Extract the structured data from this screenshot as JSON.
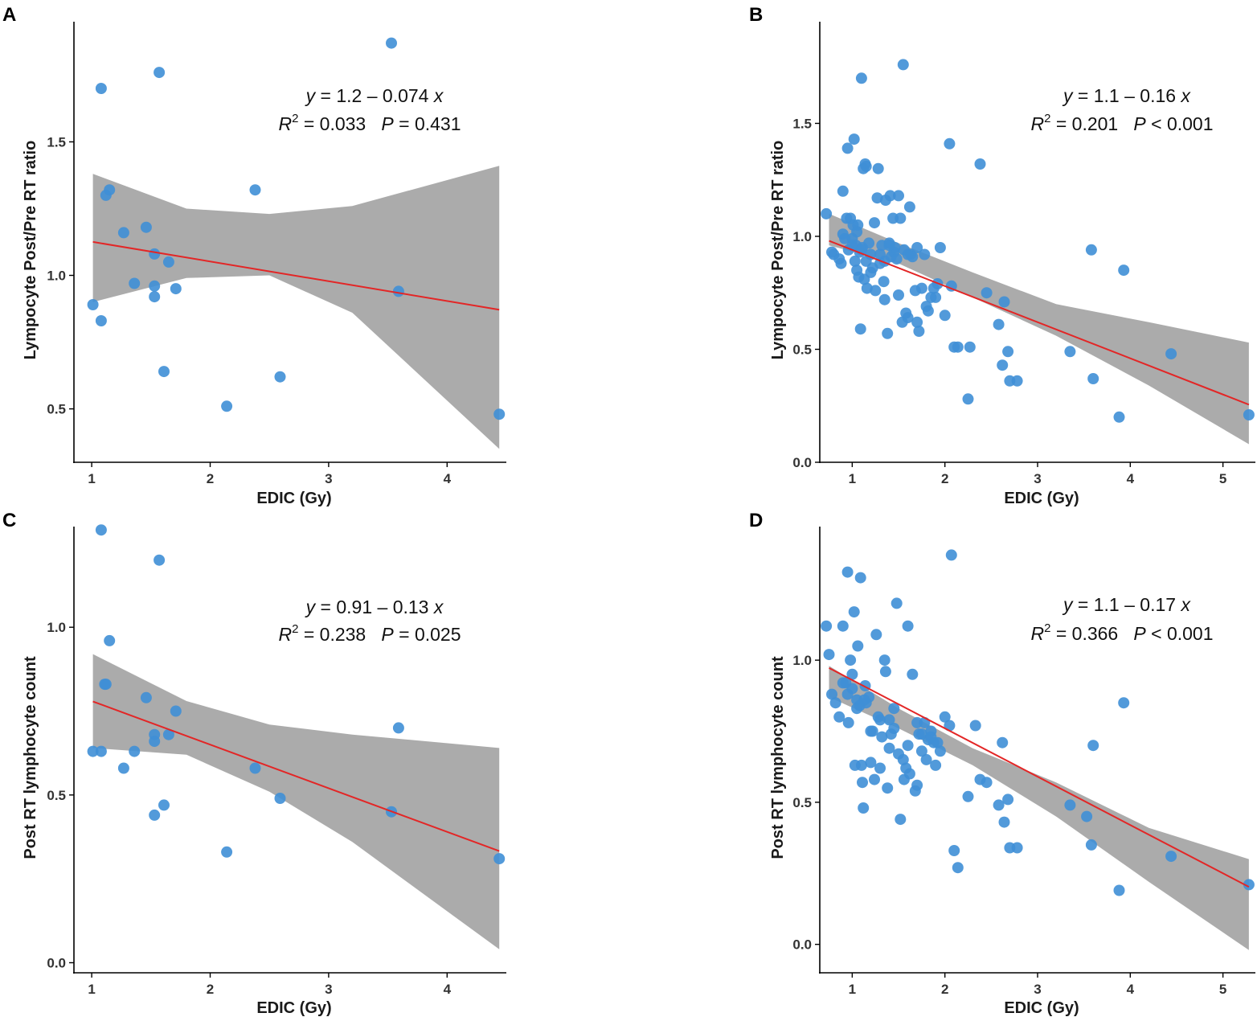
{
  "colors": {
    "point": "#3f8fd6",
    "regression_line": "#e32626",
    "confidence_band": "#a6a6a6",
    "axis": "#000000"
  },
  "chart_data": [
    {
      "type": "scatter",
      "panel_label": "A",
      "xlabel": "EDIC (Gy)",
      "ylabel": "Lympocyte Post/Pre RT ratio",
      "xlim": [
        0.85,
        4.5
      ],
      "ylim": [
        0.3,
        1.95
      ],
      "xticks": [
        1,
        2,
        3,
        4
      ],
      "yticks": [
        0.5,
        1.0,
        1.5
      ],
      "ytick_labels": [
        "0.5",
        "1.0",
        "1.5"
      ],
      "equation": {
        "y_label": "y",
        "intercept_text": " = 1.2 ",
        "minus": "–",
        "slope_text": " 0.074 ",
        "x_label": "x"
      },
      "stats": {
        "r_label": "R",
        "r_exp": "2",
        "r_value_text": " = 0.033",
        "p_label": "P",
        "p_value_text": " = 0.431"
      },
      "regression": {
        "intercept": 1.2,
        "slope": -0.074,
        "x_range": [
          1.01,
          4.44
        ],
        "band": [
          [
            1.01,
            0.9,
            1.38
          ],
          [
            1.8,
            0.99,
            1.25
          ],
          [
            2.5,
            1.0,
            1.23
          ],
          [
            3.2,
            0.86,
            1.26
          ],
          [
            4.44,
            0.35,
            1.41
          ]
        ]
      },
      "x": [
        1.01,
        1.08,
        1.08,
        1.12,
        1.15,
        1.27,
        1.36,
        1.46,
        1.53,
        1.53,
        1.53,
        1.57,
        1.61,
        1.65,
        1.71,
        2.14,
        2.38,
        2.59,
        3.53,
        3.59,
        4.44
      ],
      "y": [
        0.89,
        1.7,
        0.83,
        1.3,
        1.32,
        1.16,
        0.97,
        1.18,
        1.08,
        0.96,
        0.92,
        1.76,
        0.64,
        1.05,
        0.95,
        0.51,
        1.32,
        0.62,
        1.87,
        0.94,
        0.48
      ]
    },
    {
      "type": "scatter",
      "panel_label": "B",
      "xlabel": "EDIC (Gy)",
      "ylabel": "Lympocyte Post/Pre RT ratio",
      "xlim": [
        0.65,
        5.35
      ],
      "ylim": [
        0.0,
        1.95
      ],
      "xticks": [
        1,
        2,
        3,
        4,
        5
      ],
      "yticks": [
        0.0,
        0.5,
        1.0,
        1.5
      ],
      "ytick_labels": [
        "0.0",
        "0.5",
        "1.0",
        "1.5"
      ],
      "equation": {
        "y_label": "y",
        "intercept_text": " = 1.1 ",
        "minus": "–",
        "slope_text": " 0.16 ",
        "x_label": "x"
      },
      "stats": {
        "r_label": "R",
        "r_exp": "2",
        "r_value_text": " = 0.201",
        "p_label": "P",
        "p_value_text": " < 0.001"
      },
      "regression": {
        "intercept": 1.1,
        "slope": -0.16,
        "x_range": [
          0.75,
          5.28
        ],
        "band": [
          [
            0.75,
            0.96,
            1.1
          ],
          [
            1.5,
            0.88,
            0.97
          ],
          [
            2.3,
            0.73,
            0.84
          ],
          [
            3.2,
            0.56,
            0.7
          ],
          [
            4.2,
            0.34,
            0.62
          ],
          [
            5.28,
            0.08,
            0.53
          ]
        ]
      },
      "x": [
        0.72,
        0.78,
        0.8,
        0.86,
        0.88,
        0.9,
        0.92,
        0.94,
        0.95,
        0.96,
        0.98,
        1.0,
        1.01,
        1.02,
        1.03,
        1.04,
        1.05,
        1.06,
        1.07,
        1.08,
        1.09,
        1.1,
        1.11,
        1.12,
        1.13,
        1.14,
        1.15,
        1.16,
        1.18,
        1.2,
        1.22,
        1.24,
        1.25,
        1.27,
        1.28,
        1.3,
        1.32,
        1.34,
        1.35,
        1.36,
        1.38,
        1.4,
        1.41,
        1.42,
        1.44,
        1.45,
        1.46,
        1.48,
        1.5,
        1.52,
        1.54,
        1.55,
        1.56,
        1.58,
        1.6,
        1.62,
        1.63,
        1.65,
        1.68,
        1.7,
        1.72,
        1.75,
        1.78,
        1.8,
        1.82,
        1.85,
        1.88,
        1.9,
        1.92,
        1.95,
        2.0,
        2.05,
        2.07,
        2.1,
        2.14,
        2.25,
        2.27,
        2.38,
        2.45,
        2.58,
        2.62,
        2.64,
        2.68,
        2.7,
        2.78,
        3.35,
        3.58,
        3.6,
        3.88,
        3.93,
        4.44,
        5.28,
        0.9,
        1.05,
        1.1,
        1.2,
        1.3,
        1.4,
        1.5,
        1.6,
        1.7,
        1.0,
        1.15,
        1.35
      ],
      "y": [
        1.1,
        0.93,
        0.92,
        0.9,
        0.88,
        1.2,
        0.99,
        1.08,
        1.39,
        0.94,
        1.08,
        0.96,
        1.05,
        1.43,
        0.89,
        0.96,
        0.85,
        1.05,
        0.82,
        0.93,
        0.59,
        1.7,
        0.95,
        1.3,
        0.81,
        1.32,
        1.31,
        0.77,
        0.97,
        0.92,
        0.86,
        1.06,
        0.76,
        1.17,
        1.3,
        0.92,
        0.96,
        0.8,
        0.89,
        1.16,
        0.57,
        0.97,
        1.18,
        0.91,
        1.08,
        0.93,
        0.95,
        0.9,
        1.18,
        1.08,
        0.62,
        1.76,
        0.94,
        0.66,
        0.64,
        1.13,
        0.92,
        0.91,
        0.76,
        0.95,
        0.58,
        0.77,
        0.92,
        0.69,
        0.67,
        0.73,
        0.77,
        0.73,
        0.79,
        0.95,
        0.65,
        1.41,
        0.78,
        0.51,
        0.51,
        0.28,
        0.51,
        1.32,
        0.75,
        0.61,
        0.43,
        0.71,
        0.49,
        0.36,
        0.36,
        0.49,
        0.94,
        0.37,
        0.2,
        0.85,
        0.48,
        0.21,
        1.01,
        1.02,
        0.94,
        0.84,
        0.88,
        0.96,
        0.74,
        0.92,
        0.62,
        0.99,
        0.89,
        0.72
      ]
    },
    {
      "type": "scatter",
      "panel_label": "C",
      "xlabel": "EDIC (Gy)",
      "ylabel": "Post RT lymphocyte count",
      "xlim": [
        0.85,
        4.5
      ],
      "ylim": [
        -0.03,
        1.3
      ],
      "xticks": [
        1,
        2,
        3,
        4
      ],
      "yticks": [
        0.0,
        0.5,
        1.0
      ],
      "ytick_labels": [
        "0.0",
        "0.5",
        "1.0"
      ],
      "equation": {
        "y_label": "y",
        "intercept_text": " = 0.91 ",
        "minus": "–",
        "slope_text": " 0.13 ",
        "x_label": "x"
      },
      "stats": {
        "r_label": "R",
        "r_exp": "2",
        "r_value_text": " = 0.238",
        "p_label": "P",
        "p_value_text": " = 0.025"
      },
      "regression": {
        "intercept": 0.91,
        "slope": -0.13,
        "x_range": [
          1.01,
          4.44
        ],
        "band": [
          [
            1.01,
            0.64,
            0.92
          ],
          [
            1.8,
            0.62,
            0.78
          ],
          [
            2.5,
            0.51,
            0.71
          ],
          [
            3.2,
            0.36,
            0.68
          ],
          [
            4.44,
            0.04,
            0.64
          ]
        ]
      },
      "x": [
        1.01,
        1.08,
        1.08,
        1.11,
        1.12,
        1.15,
        1.27,
        1.36,
        1.46,
        1.53,
        1.53,
        1.53,
        1.57,
        1.61,
        1.65,
        1.71,
        2.14,
        2.38,
        2.59,
        3.53,
        3.59,
        4.44
      ],
      "y": [
        0.63,
        1.29,
        0.63,
        0.83,
        0.83,
        0.96,
        0.58,
        0.63,
        0.79,
        0.68,
        0.66,
        0.44,
        1.2,
        0.47,
        0.68,
        0.75,
        0.33,
        0.58,
        0.49,
        0.45,
        0.7,
        0.31
      ]
    },
    {
      "type": "scatter",
      "panel_label": "D",
      "xlabel": "EDIC (Gy)",
      "ylabel": "Post RT lymphocyte count",
      "xlim": [
        0.65,
        5.35
      ],
      "ylim": [
        -0.1,
        1.47
      ],
      "xticks": [
        1,
        2,
        3,
        4,
        5
      ],
      "yticks": [
        0.0,
        0.5,
        1.0
      ],
      "ytick_labels": [
        "0.0",
        "0.5",
        "1.0"
      ],
      "equation": {
        "y_label": "y",
        "intercept_text": " = 1.1 ",
        "minus": "–",
        "slope_text": " 0.17 ",
        "x_label": "x"
      },
      "stats": {
        "r_label": "R",
        "r_exp": "2",
        "r_value_text": " = 0.366",
        "p_label": "P",
        "p_value_text": " < 0.001"
      },
      "regression": {
        "intercept": 1.1,
        "slope": -0.17,
        "x_range": [
          0.75,
          5.28
        ],
        "band": [
          [
            0.75,
            0.87,
            0.98
          ],
          [
            1.5,
            0.76,
            0.83
          ],
          [
            2.3,
            0.63,
            0.69
          ],
          [
            3.2,
            0.45,
            0.57
          ],
          [
            4.2,
            0.22,
            0.41
          ],
          [
            5.28,
            -0.02,
            0.3
          ]
        ]
      },
      "x": [
        0.72,
        0.75,
        0.78,
        0.82,
        0.86,
        0.9,
        0.93,
        0.95,
        0.96,
        0.98,
        1.0,
        1.02,
        1.03,
        1.05,
        1.06,
        1.08,
        1.09,
        1.1,
        1.11,
        1.12,
        1.14,
        1.15,
        1.18,
        1.2,
        1.22,
        1.24,
        1.26,
        1.28,
        1.3,
        1.32,
        1.35,
        1.36,
        1.38,
        1.4,
        1.42,
        1.45,
        1.48,
        1.5,
        1.52,
        1.55,
        1.56,
        1.58,
        1.6,
        1.62,
        1.65,
        1.68,
        1.7,
        1.72,
        1.75,
        1.78,
        1.8,
        1.82,
        1.85,
        1.88,
        1.92,
        1.95,
        2.0,
        2.05,
        2.07,
        2.1,
        2.14,
        2.25,
        2.33,
        2.38,
        2.45,
        2.58,
        2.62,
        2.64,
        2.68,
        2.7,
        2.78,
        3.35,
        3.53,
        3.58,
        3.6,
        3.88,
        3.93,
        4.44,
        5.28,
        0.95,
        1.05,
        1.2,
        1.3,
        1.45,
        1.6,
        1.75,
        1.9,
        1.0,
        1.13,
        1.4,
        1.7,
        1.85,
        0.9
      ],
      "y": [
        1.12,
        1.02,
        0.88,
        0.85,
        0.8,
        1.12,
        0.92,
        1.31,
        0.78,
        1.0,
        0.9,
        1.17,
        0.63,
        0.86,
        1.05,
        0.84,
        1.29,
        0.63,
        0.57,
        0.48,
        0.91,
        0.85,
        0.87,
        0.64,
        0.75,
        0.58,
        1.09,
        0.8,
        0.62,
        0.73,
        1.0,
        0.96,
        0.55,
        0.79,
        0.74,
        0.76,
        1.2,
        0.67,
        0.44,
        0.65,
        0.58,
        0.62,
        1.12,
        0.6,
        0.95,
        0.54,
        0.56,
        0.74,
        0.68,
        0.78,
        0.65,
        0.72,
        0.75,
        0.71,
        0.71,
        0.68,
        0.8,
        0.77,
        1.37,
        0.33,
        0.27,
        0.52,
        0.77,
        0.58,
        0.57,
        0.49,
        0.71,
        0.43,
        0.51,
        0.34,
        0.34,
        0.49,
        0.45,
        0.35,
        0.7,
        0.19,
        0.85,
        0.31,
        0.21,
        0.88,
        0.83,
        0.75,
        0.79,
        0.83,
        0.7,
        0.74,
        0.63,
        0.95,
        0.86,
        0.69,
        0.78,
        0.73,
        0.92
      ]
    }
  ]
}
